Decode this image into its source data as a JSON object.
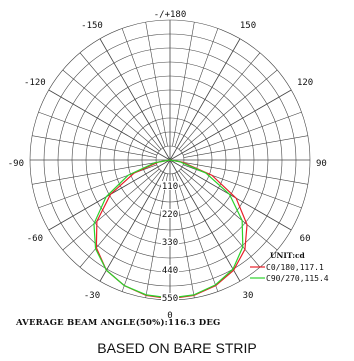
{
  "chart_data": {
    "type": "polar-line",
    "angle_labels": [
      "-/+180",
      "150",
      "120",
      "90",
      "60",
      "30",
      "0",
      "-30",
      "-60",
      "-90",
      "-120",
      "-150"
    ],
    "radial_ticks": [
      110,
      220,
      330,
      440,
      550
    ],
    "radial_tick_labels": [
      "110",
      "220",
      "330",
      "440",
      "550"
    ],
    "rmax": 550,
    "unit_label": "UNIT:cd",
    "series": [
      {
        "name": "C0/180,117.1",
        "color": "#e8202a",
        "angles": [
          -90,
          -80,
          -70,
          -60,
          -50,
          -40,
          -30,
          -20,
          -10,
          0,
          10,
          20,
          30,
          40,
          50,
          60,
          70,
          80,
          90
        ],
        "values": [
          0,
          45,
          150,
          270,
          375,
          450,
          500,
          525,
          540,
          545,
          540,
          525,
          500,
          458,
          395,
          300,
          175,
          50,
          0
        ]
      },
      {
        "name": "C90/270,115.4",
        "color": "#2bd12b",
        "angles": [
          -90,
          -80,
          -70,
          -60,
          -50,
          -40,
          -30,
          -20,
          -10,
          0,
          10,
          20,
          30,
          40,
          50,
          60,
          70,
          80,
          90
        ],
        "values": [
          0,
          60,
          175,
          290,
          390,
          455,
          500,
          525,
          538,
          542,
          538,
          522,
          495,
          445,
          370,
          270,
          150,
          40,
          0
        ]
      }
    ],
    "annotation": "AVERAGE BEAM ANGLE(50%):116.3 DEG"
  },
  "caption": "BASED ON BARE STRIP"
}
